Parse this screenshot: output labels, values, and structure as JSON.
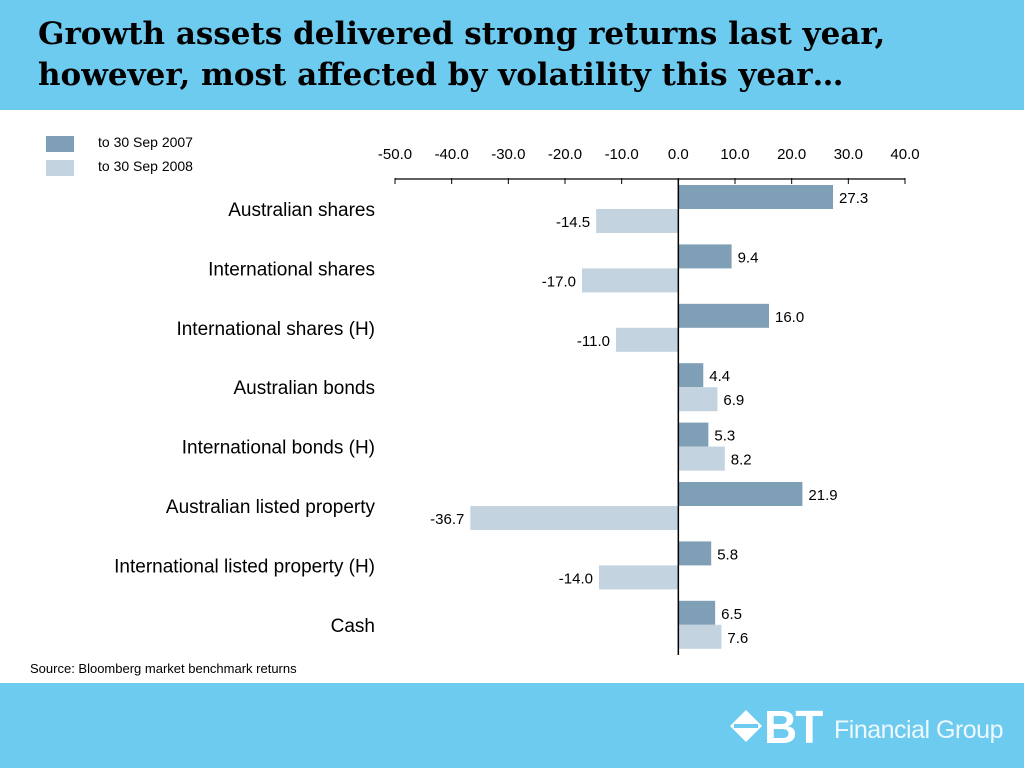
{
  "title": "Growth assets delivered strong returns last year,\nhowever, most affected by volatility this year…",
  "legend": [
    {
      "label": "to 30 Sep 2007",
      "color": "#7f9fb6"
    },
    {
      "label": "to 30 Sep 2008",
      "color": "#c3d3e0"
    }
  ],
  "source": "Source: Bloomberg market benchmark returns",
  "logo": {
    "brand": "BT",
    "text": "Financial Group",
    "icon": "bt-diamond-icon"
  },
  "colors": {
    "header_band": "#6ecbf0",
    "footer_band": "#6ecbf0"
  },
  "chart_data": {
    "type": "bar",
    "orientation": "horizontal",
    "xlim": [
      -50,
      40
    ],
    "tick_labels": [
      "-50.0",
      "-40.0",
      "-30.0",
      "-20.0",
      "-10.0",
      "0.0",
      "10.0",
      "20.0",
      "30.0",
      "40.0"
    ],
    "axis_position": "top",
    "grid": false,
    "categories": [
      "Australian shares",
      "International shares",
      "International shares (H)",
      "Australian bonds",
      "International bonds (H)",
      "Australian listed property",
      "International listed property (H)",
      "Cash"
    ],
    "series": [
      {
        "name": "to 30 Sep 2007",
        "color": "#7f9fb6",
        "values": [
          27.3,
          9.4,
          16.0,
          4.4,
          5.3,
          21.9,
          5.8,
          6.5
        ],
        "labels": [
          "27.3",
          "9.4",
          "16.0",
          "4.4",
          "5.3",
          "21.9",
          "5.8",
          "6.5"
        ]
      },
      {
        "name": "to 30 Sep 2008",
        "color": "#c3d3e0",
        "values": [
          -14.5,
          -17.0,
          -11.0,
          6.9,
          8.2,
          -36.7,
          -14.0,
          7.6
        ],
        "labels": [
          "-14.5",
          "-17.0",
          "-11.0",
          "6.9",
          "8.2",
          "-36.7",
          "-14.0",
          "7.6"
        ]
      }
    ]
  }
}
